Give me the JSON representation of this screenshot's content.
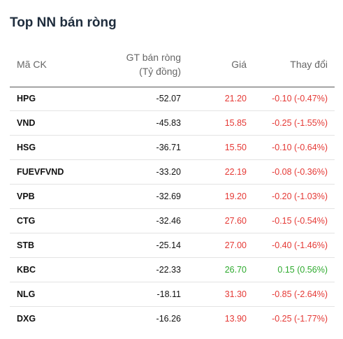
{
  "title": "Top NN bán ròng",
  "header": {
    "ck": "Mã CK",
    "gt_line1": "GT bán ròng",
    "gt_line2": "(Tỷ đồng)",
    "gia": "Giá",
    "thay_doi": "Thay đổi"
  },
  "colors": {
    "down": "#e53935",
    "up": "#2eaa2e"
  },
  "rows": [
    {
      "ck": "HPG",
      "gt": "-52.07",
      "gia": "21.20",
      "thay_doi": "-0.10 (-0.47%)",
      "trend": "down"
    },
    {
      "ck": "VND",
      "gt": "-45.83",
      "gia": "15.85",
      "thay_doi": "-0.25 (-1.55%)",
      "trend": "down"
    },
    {
      "ck": "HSG",
      "gt": "-36.71",
      "gia": "15.50",
      "thay_doi": "-0.10 (-0.64%)",
      "trend": "down"
    },
    {
      "ck": "FUEVFVND",
      "gt": "-33.20",
      "gia": "22.19",
      "thay_doi": "-0.08 (-0.36%)",
      "trend": "down"
    },
    {
      "ck": "VPB",
      "gt": "-32.69",
      "gia": "19.20",
      "thay_doi": "-0.20 (-1.03%)",
      "trend": "down"
    },
    {
      "ck": "CTG",
      "gt": "-32.46",
      "gia": "27.60",
      "thay_doi": "-0.15 (-0.54%)",
      "trend": "down"
    },
    {
      "ck": "STB",
      "gt": "-25.14",
      "gia": "27.00",
      "thay_doi": "-0.40 (-1.46%)",
      "trend": "down"
    },
    {
      "ck": "KBC",
      "gt": "-22.33",
      "gia": "26.70",
      "thay_doi": "0.15 (0.56%)",
      "trend": "up"
    },
    {
      "ck": "NLG",
      "gt": "-18.11",
      "gia": "31.30",
      "thay_doi": "-0.85 (-2.64%)",
      "trend": "down"
    },
    {
      "ck": "DXG",
      "gt": "-16.26",
      "gia": "13.90",
      "thay_doi": "-0.25 (-1.77%)",
      "trend": "down"
    }
  ]
}
